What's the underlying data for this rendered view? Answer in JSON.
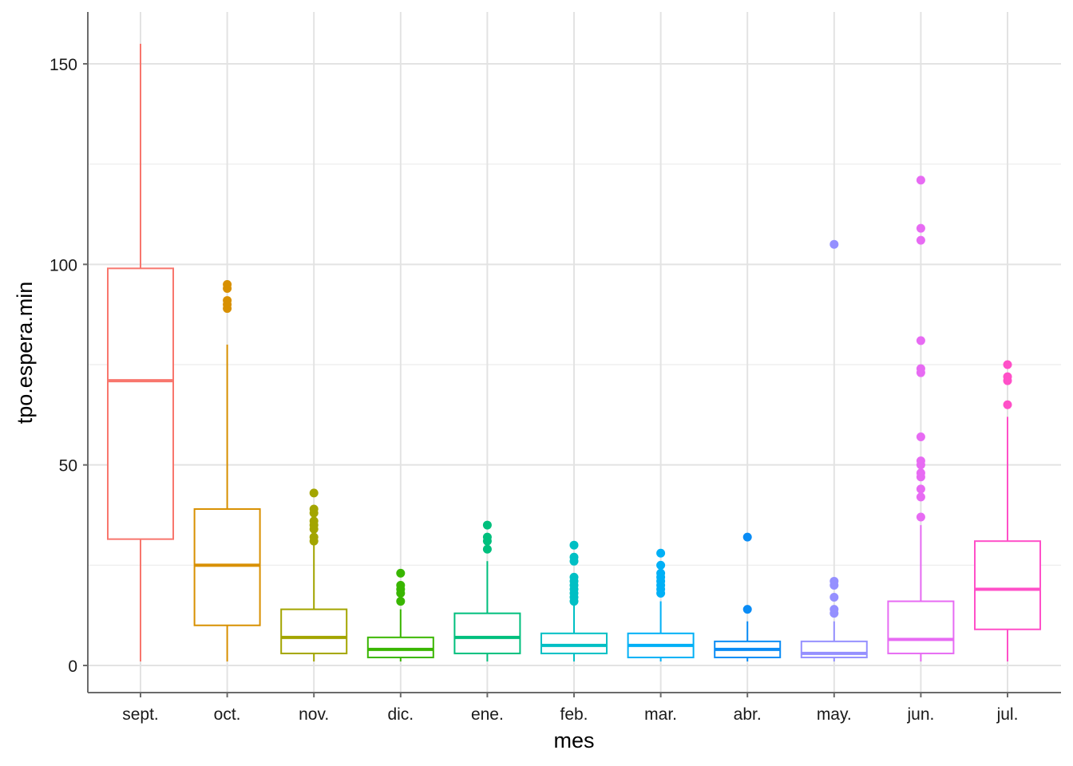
{
  "chart_data": {
    "type": "boxplot",
    "xlabel": "mes",
    "ylabel": "tpo.espera.min",
    "ylim": [
      -6.5,
      163
    ],
    "y_ticks": [
      0,
      50,
      100,
      150
    ],
    "grid": true,
    "legend": "none",
    "categories": [
      {
        "name": "sept.",
        "color": "#F8766D",
        "q1": 31.5,
        "median": 71,
        "q3": 99,
        "whisker_low": 1,
        "whisker_high": 155,
        "outliers": []
      },
      {
        "name": "oct.",
        "color": "#D89000",
        "q1": 10,
        "median": 25,
        "q3": 39,
        "whisker_low": 1,
        "whisker_high": 80,
        "outliers": [
          89,
          90,
          91,
          94,
          95
        ]
      },
      {
        "name": "nov.",
        "color": "#A3A500",
        "q1": 3,
        "median": 7,
        "q3": 14,
        "whisker_low": 1,
        "whisker_high": 30,
        "outliers": [
          31,
          32,
          34,
          35,
          36,
          38,
          39,
          43
        ]
      },
      {
        "name": "dic.",
        "color": "#39B600",
        "q1": 2,
        "median": 4,
        "q3": 7,
        "whisker_low": 1,
        "whisker_high": 14,
        "outliers": [
          16,
          18,
          19,
          20,
          23
        ]
      },
      {
        "name": "ene.",
        "color": "#00BF7D",
        "q1": 3,
        "median": 7,
        "q3": 13,
        "whisker_low": 1,
        "whisker_high": 26,
        "outliers": [
          29,
          31,
          32,
          35
        ]
      },
      {
        "name": "feb.",
        "color": "#00BFC4",
        "q1": 3,
        "median": 5,
        "q3": 8,
        "whisker_low": 1,
        "whisker_high": 15,
        "outliers": [
          16,
          17,
          18,
          19,
          20,
          21,
          22,
          26,
          27,
          30
        ]
      },
      {
        "name": "mar.",
        "color": "#00B0F6",
        "q1": 2,
        "median": 5,
        "q3": 8,
        "whisker_low": 1,
        "whisker_high": 16,
        "outliers": [
          18,
          19,
          20,
          21,
          22,
          23,
          25,
          28
        ]
      },
      {
        "name": "abr.",
        "color": "#0A8CF5",
        "q1": 2,
        "median": 4,
        "q3": 6,
        "whisker_low": 1,
        "whisker_high": 11,
        "outliers": [
          14,
          32
        ]
      },
      {
        "name": "may.",
        "color": "#9590FF",
        "q1": 2,
        "median": 3,
        "q3": 6,
        "whisker_low": 1,
        "whisker_high": 11,
        "outliers": [
          13,
          14,
          17,
          20,
          21,
          105
        ]
      },
      {
        "name": "jun.",
        "color": "#E76BF3",
        "q1": 3,
        "median": 6.5,
        "q3": 16,
        "whisker_low": 1,
        "whisker_high": 35,
        "outliers": [
          37,
          42,
          44,
          47,
          48,
          50,
          51,
          57,
          73,
          74,
          81,
          106,
          109,
          121
        ]
      },
      {
        "name": "jul.",
        "color": "#FF50C8",
        "q1": 9,
        "median": 19,
        "q3": 31,
        "whisker_low": 1,
        "whisker_high": 62,
        "outliers": [
          65,
          71,
          72,
          75
        ]
      }
    ]
  }
}
